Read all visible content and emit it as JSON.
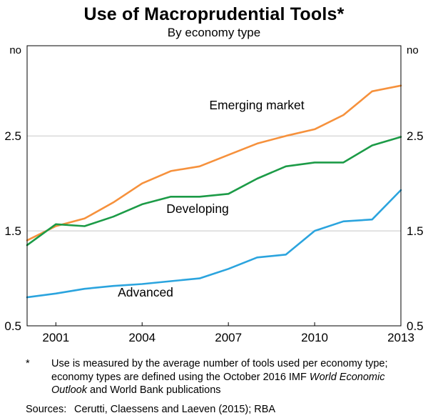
{
  "chart_data": {
    "type": "line",
    "title": "Use of Macroprudential Tools*",
    "subtitle": "By economy type",
    "unit_label": "no",
    "x": [
      2000,
      2001,
      2002,
      2003,
      2004,
      2005,
      2006,
      2007,
      2008,
      2009,
      2010,
      2011,
      2012,
      2013
    ],
    "series": [
      {
        "name": "Emerging market",
        "color": "#f6913c",
        "values": [
          1.4,
          1.55,
          1.63,
          1.8,
          2.0,
          2.13,
          2.18,
          2.3,
          2.42,
          2.5,
          2.57,
          2.72,
          2.97,
          3.03
        ]
      },
      {
        "name": "Developing",
        "color": "#1c9b47",
        "values": [
          1.35,
          1.57,
          1.55,
          1.65,
          1.78,
          1.86,
          1.86,
          1.89,
          2.05,
          2.18,
          2.22,
          2.22,
          2.4,
          2.49
        ]
      },
      {
        "name": "Advanced",
        "color": "#2ba4de",
        "values": [
          0.8,
          0.84,
          0.89,
          0.92,
          0.94,
          0.97,
          1.0,
          1.1,
          1.22,
          1.25,
          1.5,
          1.6,
          1.62,
          1.93
        ]
      }
    ],
    "xticks": [
      2001,
      2004,
      2007,
      2010,
      2013
    ],
    "yticks": [
      0.5,
      1.5,
      2.5
    ],
    "xlim": [
      2000,
      2013
    ],
    "ylim": [
      0.5,
      3.45
    ],
    "gridlines": [
      1.5,
      2.5
    ],
    "grid_color": "#c8c8c8",
    "legend_position": "inline-labels",
    "layout": {
      "label_positions": {
        "Emerging market": [
          360,
          97
        ],
        "Developing": [
          277,
          242
        ],
        "Advanced": [
          204,
          359
        ]
      }
    }
  },
  "footnote": {
    "marker": "*",
    "part1": "Use is measured by the average number of tools used per economy type; economy types are defined using the October 2016 IMF ",
    "italic": "World Economic Outlook",
    "part2": " and World Bank publications"
  },
  "sources": {
    "label": "Sources:",
    "text": "Cerutti, Claessens and Laeven (2015); RBA"
  }
}
